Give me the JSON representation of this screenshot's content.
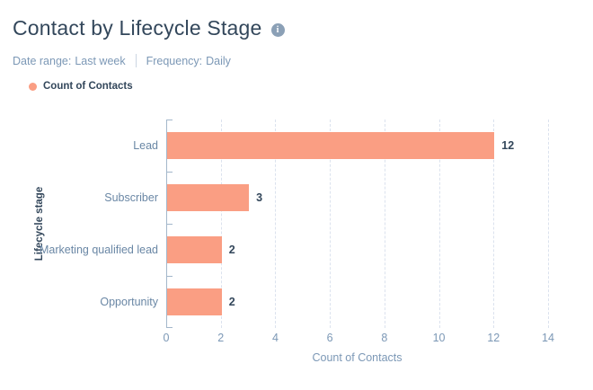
{
  "header": {
    "title": "Contact by Lifecycle Stage",
    "info_icon_glyph": "i"
  },
  "filters": {
    "date_range": {
      "label": "Date range:",
      "value": "Last week"
    },
    "frequency": {
      "label": "Frequency:",
      "value": "Daily"
    }
  },
  "legend": {
    "items": [
      {
        "label": "Count of Contacts",
        "color": "#fa9e83"
      }
    ]
  },
  "chart_data": {
    "type": "bar",
    "orientation": "horizontal",
    "title": "Contact by Lifecycle Stage",
    "series_name": "Count of Contacts",
    "categories": [
      "Lead",
      "Subscriber",
      "Marketing qualified lead",
      "Opportunity"
    ],
    "values": [
      12,
      3,
      2,
      2
    ],
    "xlabel": "Count of Contacts",
    "ylabel": "Lifecycle stage",
    "xlim": [
      0,
      14
    ],
    "xticks": [
      0,
      2,
      4,
      6,
      8,
      10,
      12,
      14
    ],
    "grid": true,
    "legend_position": "top-left",
    "bar_color": "#fa9e83",
    "axis_line_color": "#a3b7cb",
    "gridline_color": "#dbe2ee",
    "data_label_color": "#33475b"
  }
}
